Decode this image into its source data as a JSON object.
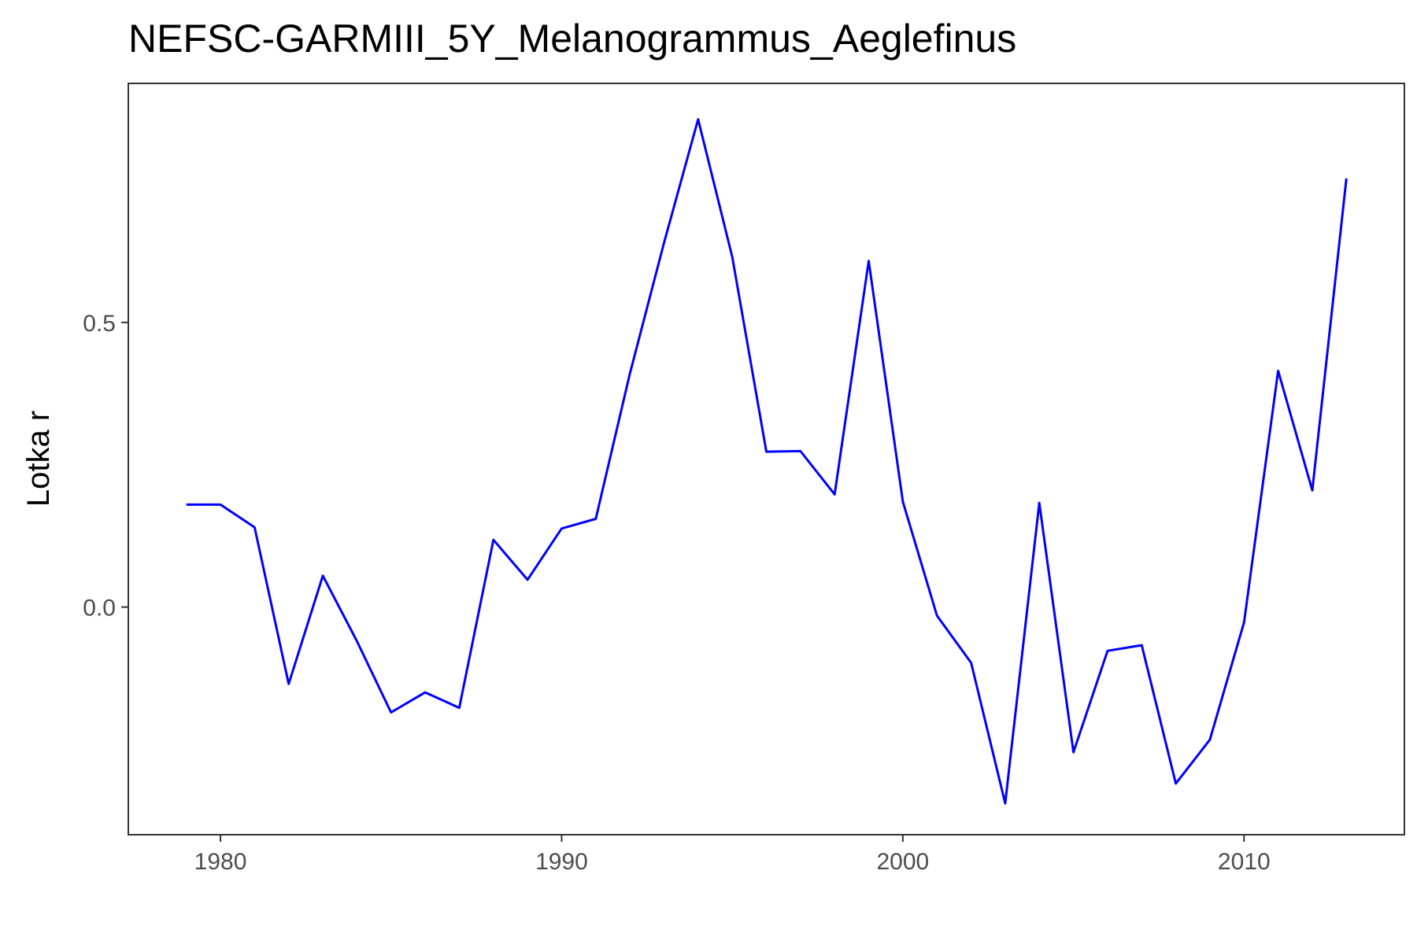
{
  "chart_data": {
    "type": "line",
    "title": "NEFSC-GARMIII_5Y_Melanogrammus_Aeglefinus",
    "xlabel": "",
    "ylabel": "Lotka r",
    "xlim": [
      1977.3,
      2014.7
    ],
    "ylim": [
      -0.4,
      0.92
    ],
    "x_ticks": [
      1980,
      1990,
      2000,
      2010
    ],
    "y_ticks": [
      0.0,
      0.5
    ],
    "y_tick_labels": [
      "0.0",
      "0.5"
    ],
    "grid": false,
    "line_color": "#0000ff",
    "series": [
      {
        "x": [
          1979,
          1980,
          1981,
          1982,
          1983,
          1984,
          1985,
          1986,
          1987,
          1988,
          1989,
          1990,
          1991,
          1992,
          1993,
          1994,
          1995,
          1996,
          1997,
          1998,
          1999,
          2000,
          2001,
          2002,
          2003,
          2004,
          2005,
          2006,
          2007,
          2008,
          2009,
          2010,
          2011,
          2012,
          2013
        ],
        "values": [
          0.18,
          0.18,
          0.14,
          -0.135,
          0.055,
          -0.06,
          -0.185,
          -0.15,
          -0.177,
          0.118,
          0.048,
          0.138,
          0.155,
          0.41,
          0.64,
          0.857,
          0.615,
          0.273,
          0.274,
          0.198,
          0.608,
          0.185,
          -0.015,
          -0.098,
          -0.345,
          0.183,
          -0.255,
          -0.077,
          -0.067,
          -0.31,
          -0.233,
          -0.027,
          0.415,
          0.205,
          0.753
        ]
      }
    ]
  }
}
